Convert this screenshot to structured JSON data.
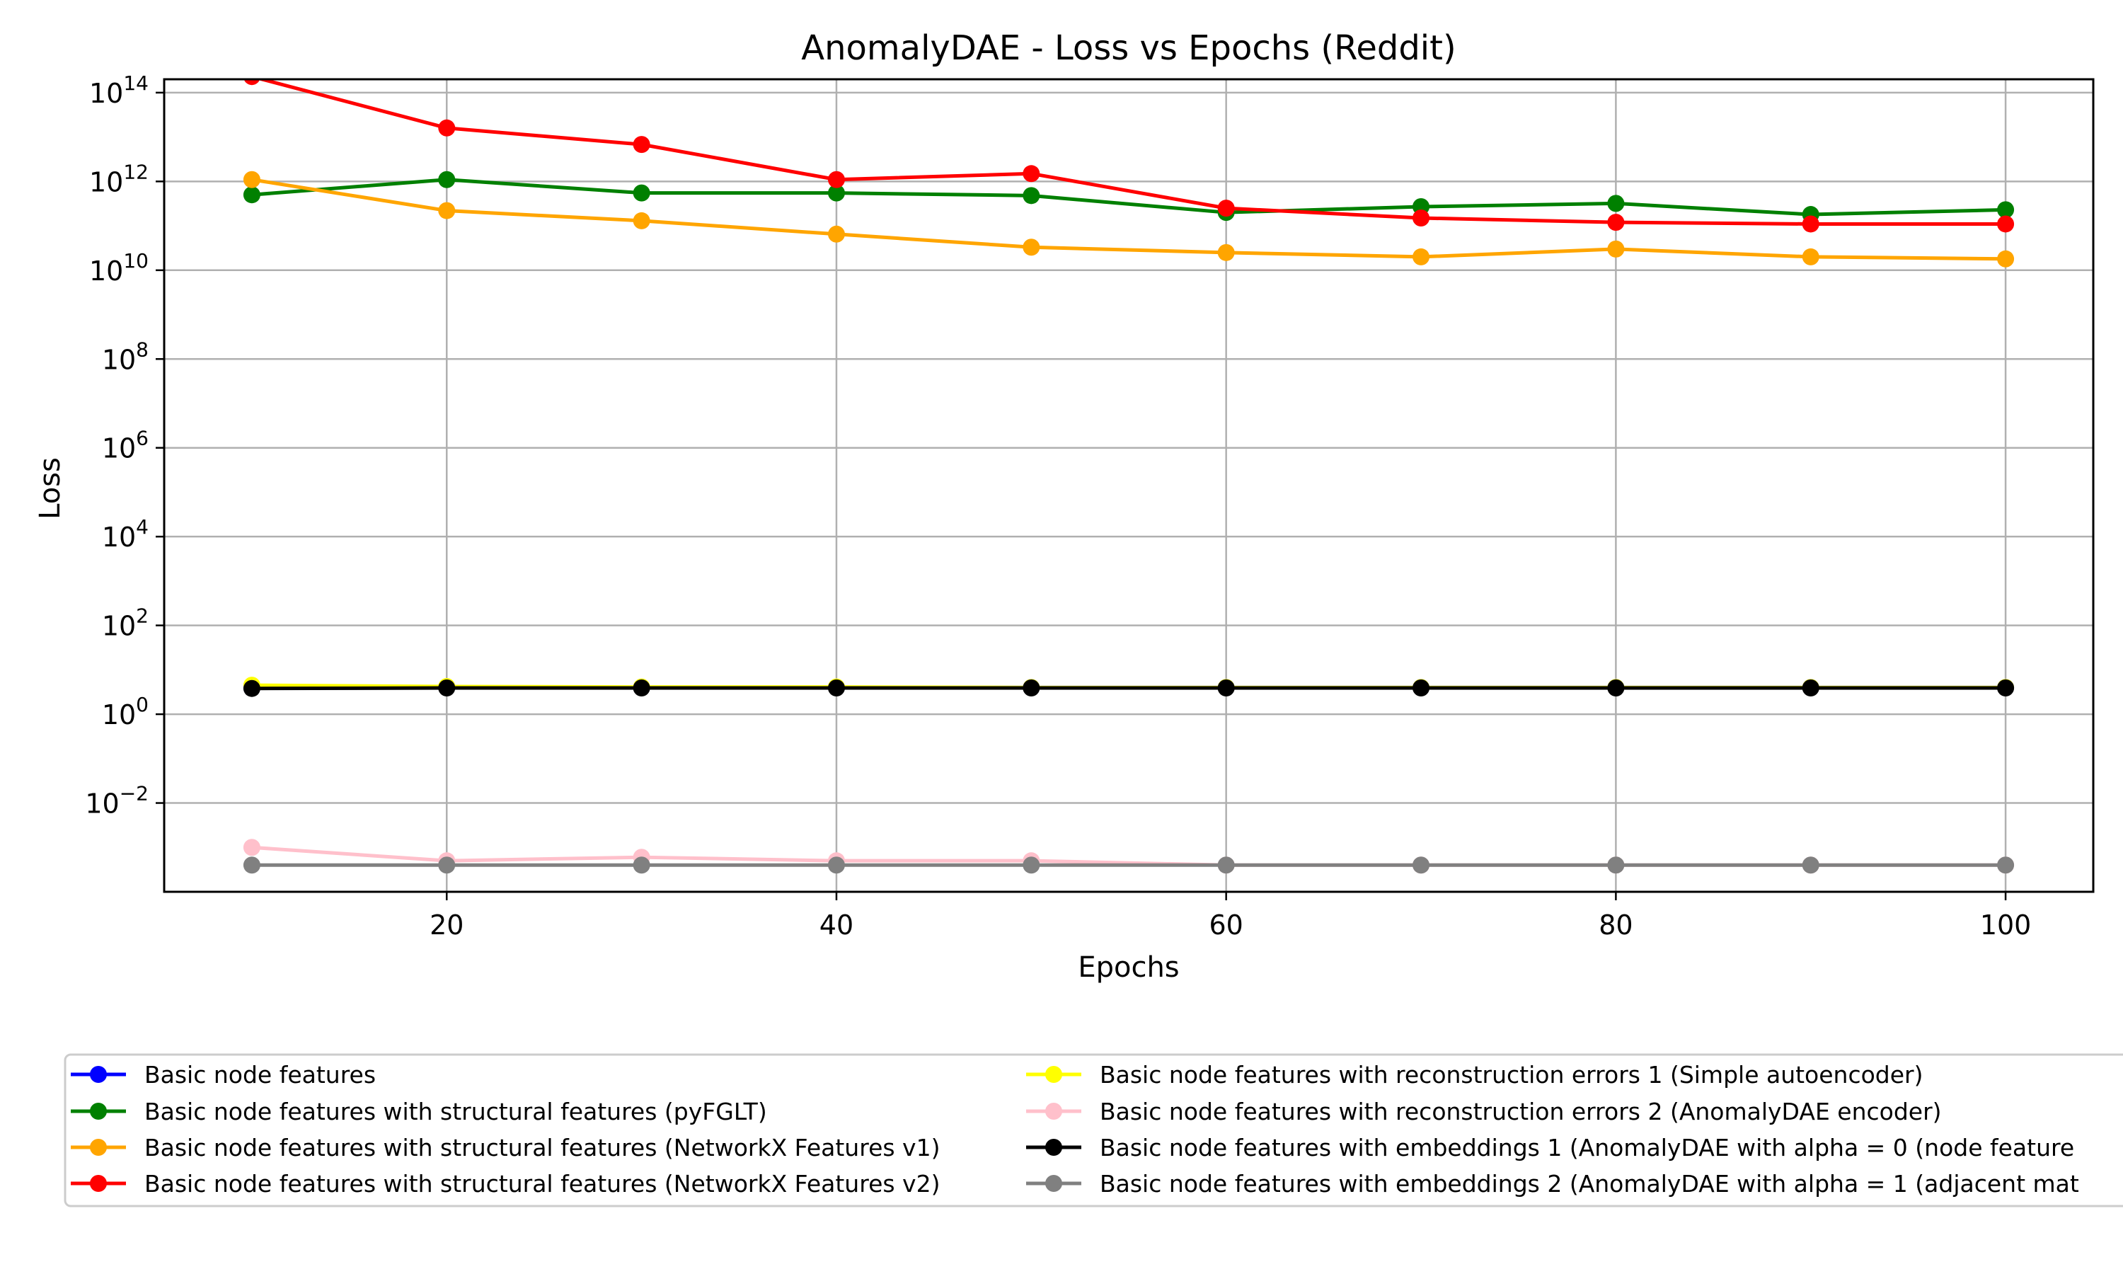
{
  "chart_data": {
    "type": "line",
    "title": "AnomalyDAE - Loss vs Epochs (Reddit)",
    "xlabel": "Epochs",
    "ylabel": "Loss",
    "x": [
      10,
      20,
      30,
      40,
      50,
      60,
      70,
      80,
      90,
      100
    ],
    "xlim": [
      5.5,
      104.5
    ],
    "ylim": [
      0.0001,
      200000000000000.0
    ],
    "yscale": "log",
    "grid": true,
    "legend_position": "bottom, outside plot area, two columns",
    "xticks": [
      {
        "value": 20,
        "label": "20"
      },
      {
        "value": 40,
        "label": "40"
      },
      {
        "value": 60,
        "label": "60"
      },
      {
        "value": 80,
        "label": "80"
      },
      {
        "value": 100,
        "label": "100"
      }
    ],
    "yticks": [
      {
        "value": 0.01,
        "base": "10",
        "exp": "−2"
      },
      {
        "value": 1,
        "base": "10",
        "exp": "0"
      },
      {
        "value": 100,
        "base": "10",
        "exp": "2"
      },
      {
        "value": 10000,
        "base": "10",
        "exp": "4"
      },
      {
        "value": 1000000,
        "base": "10",
        "exp": "6"
      },
      {
        "value": 100000000,
        "base": "10",
        "exp": "8"
      },
      {
        "value": 10000000000,
        "base": "10",
        "exp": "10"
      },
      {
        "value": 1000000000000,
        "base": "10",
        "exp": "12"
      },
      {
        "value": 100000000000000,
        "base": "10",
        "exp": "14"
      }
    ],
    "series": [
      {
        "name": "Basic node features",
        "color": "#0000ff",
        "values": [
          3.9,
          4.0,
          4.0,
          4.0,
          4.0,
          4.0,
          4.0,
          4.0,
          4.0,
          4.0
        ]
      },
      {
        "name": "Basic node features with structural features (pyFGLT)",
        "color": "#008000",
        "values": [
          500000000000.0,
          1100000000000.0,
          550000000000.0,
          550000000000.0,
          480000000000.0,
          200000000000.0,
          270000000000.0,
          320000000000.0,
          180000000000.0,
          230000000000.0
        ]
      },
      {
        "name": "Basic node features with structural features (NetworkX Features v1)",
        "color": "#ffa500",
        "values": [
          1100000000000.0,
          220000000000.0,
          130000000000.0,
          65000000000.0,
          33000000000.0,
          25000000000.0,
          20000000000.0,
          30000000000.0,
          20000000000.0,
          18000000000.0
        ]
      },
      {
        "name": "Basic node features with structural features (NetworkX Features v2)",
        "color": "#ff0000",
        "values": [
          230000000000000.0,
          16000000000000.0,
          6800000000000.0,
          1100000000000.0,
          1500000000000.0,
          250000000000.0,
          150000000000.0,
          120000000000.0,
          110000000000.0,
          110000000000.0
        ]
      },
      {
        "name": "Basic node features with reconstruction errors 1 (Simple autoencoder)",
        "color": "#ffff00",
        "values": [
          4.5,
          4.2,
          4.1,
          4.1,
          4.0,
          4.0,
          4.0,
          4.0,
          4.0,
          4.0
        ]
      },
      {
        "name": "Basic node features with reconstruction errors 2 (AnomalyDAE encoder)",
        "color": "#ffc0cb",
        "values": [
          0.001,
          0.0005,
          0.0006,
          0.0005,
          0.0005,
          0.0004,
          0.0004,
          0.0004,
          0.0004,
          0.0004
        ]
      },
      {
        "name": "Basic node features with embeddings 1 (AnomalyDAE with alpha = 0 (node feature",
        "color": "#000000",
        "values": [
          3.8,
          3.9,
          3.9,
          3.9,
          3.9,
          3.9,
          3.9,
          3.9,
          3.9,
          3.9
        ]
      },
      {
        "name": "Basic node features with embeddings 2 (AnomalyDAE with alpha = 1 (adjacent mat",
        "color": "#808080",
        "values": [
          0.0004,
          0.0004,
          0.0004,
          0.0004,
          0.0004,
          0.0004,
          0.0004,
          0.0004,
          0.0004,
          0.0004
        ]
      }
    ]
  }
}
